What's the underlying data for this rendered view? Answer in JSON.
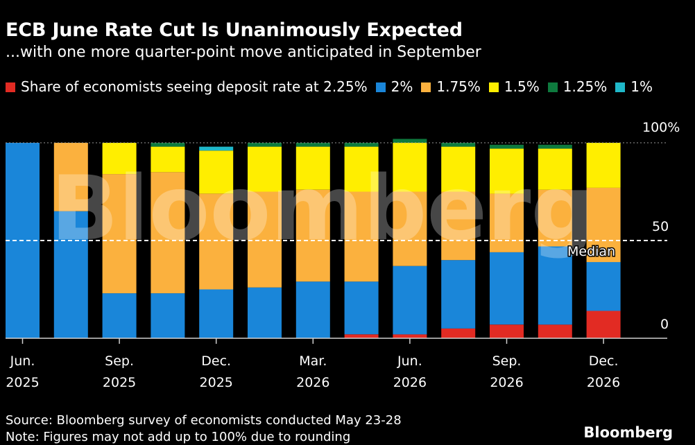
{
  "title": "ECB June Rate Cut Is Unanimously Expected",
  "subtitle": "...with one more quarter-point move anticipated in September",
  "source": "Source: Bloomberg survey of economists conducted May 23-28",
  "note": "Note: Figures may not add up to 100% due to rounding",
  "brand": "Bloomberg",
  "watermark": "Bloomberg",
  "median_label": "Median",
  "chart_data": {
    "type": "bar",
    "stacked": true,
    "categories": [
      "Jun. 2025",
      "",
      "Sep. 2025",
      "",
      "Dec. 2025",
      "",
      "Mar. 2026",
      "",
      "Jun. 2026",
      "",
      "Sep. 2026",
      "",
      "Dec. 2026"
    ],
    "x_tick_labels": [
      {
        "index": 0,
        "month": "Jun.",
        "year": "2025"
      },
      {
        "index": 2,
        "month": "Sep.",
        "year": "2025"
      },
      {
        "index": 4,
        "month": "Dec.",
        "year": "2025"
      },
      {
        "index": 6,
        "month": "Mar.",
        "year": "2026"
      },
      {
        "index": 8,
        "month": "Jun.",
        "year": "2026"
      },
      {
        "index": 10,
        "month": "Sep.",
        "year": "2026"
      },
      {
        "index": 12,
        "month": "Dec.",
        "year": "2026"
      }
    ],
    "series": [
      {
        "name": "Share of economists seeing deposit rate at 2.25%",
        "legend_label": "Share of economists seeing deposit rate at 2.25%",
        "color": "#e22b23",
        "values": [
          0,
          0,
          0,
          0,
          0,
          0,
          0,
          2,
          2,
          5,
          7,
          7,
          14
        ]
      },
      {
        "name": "2%",
        "legend_label": "2%",
        "color": "#1a86d9",
        "values": [
          100,
          65,
          23,
          23,
          25,
          26,
          29,
          27,
          35,
          35,
          37,
          40,
          25
        ]
      },
      {
        "name": "1.75%",
        "legend_label": "1.75%",
        "color": "#fbb13e",
        "values": [
          0,
          35,
          61,
          62,
          49,
          49,
          47,
          46,
          38,
          35,
          30,
          29,
          38
        ]
      },
      {
        "name": "1.5%",
        "legend_label": "1.5%",
        "color": "#ffee00",
        "values": [
          0,
          0,
          16,
          13,
          22,
          23,
          22,
          23,
          25,
          23,
          23,
          21,
          23
        ]
      },
      {
        "name": "1.25%",
        "legend_label": "1.25%",
        "color": "#0e7a3e",
        "values": [
          0,
          0,
          0,
          2,
          0,
          2,
          2,
          2,
          2,
          2,
          2,
          2,
          0
        ]
      },
      {
        "name": "1%",
        "legend_label": "1%",
        "color": "#1fb8c9",
        "values": [
          0,
          0,
          0,
          0,
          2,
          0,
          0,
          0,
          0,
          0,
          0,
          0,
          0
        ]
      }
    ],
    "y_ticks": [
      "100%",
      "50",
      "0"
    ],
    "y_tick_values": [
      100,
      50,
      0
    ],
    "ylim": [
      0,
      100
    ],
    "median_line_value": 50,
    "grid": false,
    "legend_position": "top"
  }
}
